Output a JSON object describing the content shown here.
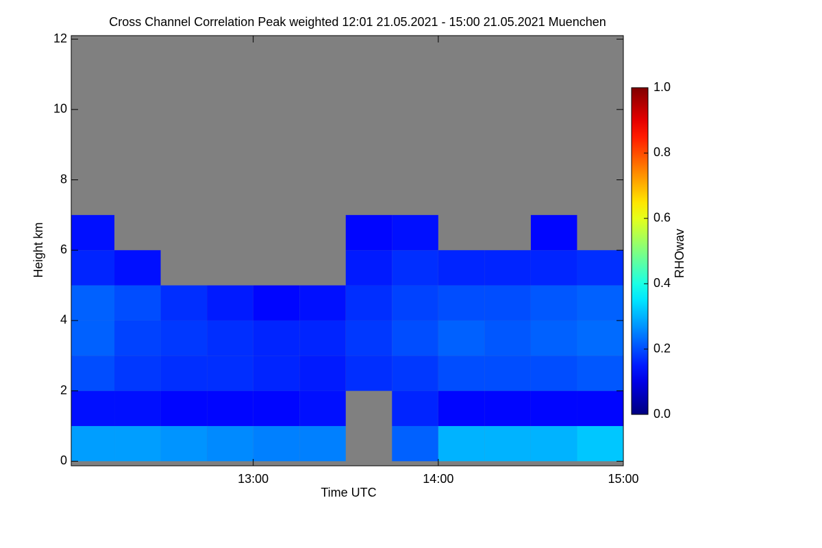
{
  "chart_data": {
    "type": "heatmap",
    "title": "Cross Channel Correlation Peak weighted   12:01 21.05.2021 - 15:00 21.05.2021 Muenchen",
    "xlabel": "Time UTC",
    "ylabel": "Height km",
    "colorbar_label": "RHOwav",
    "colormap": "jet",
    "missing_color": "#808080",
    "xlim": [
      12.0167,
      15.0
    ],
    "xticks": [
      {
        "value": 13,
        "label": "13:00"
      },
      {
        "value": 14,
        "label": "14:00"
      },
      {
        "value": 15,
        "label": "15:00"
      }
    ],
    "ylim": [
      -0.13,
      12.1
    ],
    "yticks": [
      0,
      2,
      4,
      6,
      8,
      10,
      12
    ],
    "zlim": [
      0,
      1
    ],
    "zticks": [
      {
        "value": 0,
        "label": "0.0"
      },
      0.2,
      0.4,
      0.6,
      0.8,
      {
        "value": 1,
        "label": "1.0"
      }
    ],
    "xbins": [
      12.0167,
      12.25,
      12.5,
      12.75,
      13,
      13.25,
      13.5,
      13.75,
      14,
      14.25,
      14.5,
      14.75,
      15.0
    ],
    "ybins": [
      0,
      1,
      2,
      3,
      4,
      5,
      6,
      7,
      8,
      9,
      10,
      11,
      12
    ],
    "z": [
      [
        0.28,
        0.28,
        0.27,
        0.26,
        0.25,
        0.25,
        null,
        0.22,
        0.3,
        0.3,
        0.3,
        0.32
      ],
      [
        0.14,
        0.14,
        0.13,
        0.13,
        0.13,
        0.14,
        null,
        0.16,
        0.13,
        0.13,
        0.13,
        0.13
      ],
      [
        0.2,
        0.18,
        0.17,
        0.17,
        0.16,
        0.15,
        0.17,
        0.18,
        0.2,
        0.2,
        0.2,
        0.21
      ],
      [
        0.22,
        0.19,
        0.18,
        0.17,
        0.16,
        0.16,
        0.18,
        0.2,
        0.22,
        0.21,
        0.22,
        0.23
      ],
      [
        0.22,
        0.2,
        0.17,
        0.15,
        0.13,
        0.14,
        0.17,
        0.19,
        0.2,
        0.2,
        0.21,
        0.22
      ],
      [
        0.16,
        0.14,
        null,
        null,
        null,
        null,
        0.15,
        0.17,
        0.16,
        0.16,
        0.16,
        0.17
      ],
      [
        0.14,
        null,
        null,
        null,
        null,
        null,
        0.13,
        0.14,
        null,
        null,
        0.13,
        null
      ],
      [
        null,
        null,
        null,
        null,
        null,
        null,
        null,
        null,
        null,
        null,
        null,
        null
      ],
      [
        null,
        null,
        null,
        null,
        null,
        null,
        null,
        null,
        null,
        null,
        null,
        null
      ],
      [
        null,
        null,
        null,
        null,
        null,
        null,
        null,
        null,
        null,
        null,
        null,
        null
      ],
      [
        null,
        null,
        null,
        null,
        null,
        null,
        null,
        null,
        null,
        null,
        null,
        null
      ],
      [
        null,
        null,
        null,
        null,
        null,
        null,
        null,
        null,
        null,
        null,
        null,
        null
      ]
    ]
  }
}
